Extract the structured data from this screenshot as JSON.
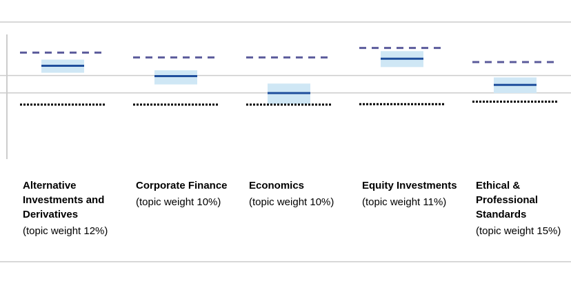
{
  "chart_data": {
    "type": "box",
    "title": "",
    "xlabel": "",
    "ylabel": "",
    "grid": true,
    "legend": "none",
    "ylim": [
      0,
      100
    ],
    "categories": [
      {
        "name": "Alternative Investments and Derivatives",
        "weight_text": "(topic weight 12%)"
      },
      {
        "name": "Corporate Finance",
        "weight_text": "(topic weight 10%)"
      },
      {
        "name": "Economics",
        "weight_text": "(topic weight 10%)"
      },
      {
        "name": "Equity Investments",
        "weight_text": "(topic weight 11%)"
      },
      {
        "name": "Ethical & Professional Standards",
        "weight_text": "(topic weight 15%)"
      }
    ],
    "series": [
      {
        "values": [
          73.4,
          70.1,
          70.1,
          76.6,
          66.9
        ],
        "style": "dashed"
      },
      {
        "values": [
          64.4,
          57.3,
          45.7,
          69.2,
          51.3
        ],
        "style": "box-median"
      },
      {
        "values": [
          37.8,
          37.8,
          37.8,
          38.1,
          39.8
        ],
        "style": "dotted"
      }
    ],
    "box_ranges": [
      [
        59.6,
        68.6
      ],
      [
        51.6,
        61.3
      ],
      [
        38.1,
        52.2
      ],
      [
        63.5,
        74.4
      ],
      [
        45.7,
        56.4
      ]
    ],
    "gridlines": [
      57.7,
      45.8
    ],
    "colors": {
      "box_fill": "#cfe7f5",
      "median": "#1f4e9c",
      "dashed": "#5b5b9b",
      "dotted": "#000000",
      "grid": "#cccccc",
      "axis": "#bbbbbb"
    }
  }
}
